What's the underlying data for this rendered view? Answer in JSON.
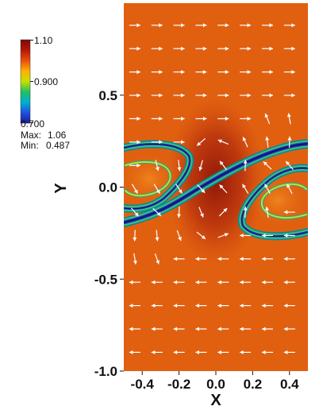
{
  "chart_data": {
    "type": "heatmap",
    "title": "",
    "xlabel": "X",
    "ylabel": "Y",
    "xlim": [
      -0.5,
      0.5
    ],
    "ylim": [
      -1.0,
      1.0
    ],
    "x_ticks": [
      {
        "value": -0.4,
        "label": "-0.4"
      },
      {
        "value": -0.2,
        "label": "-0.2"
      },
      {
        "value": 0.0,
        "label": "0.0"
      },
      {
        "value": 0.2,
        "label": "0.2"
      },
      {
        "value": 0.4,
        "label": "0.4"
      }
    ],
    "y_ticks": [
      {
        "value": 0.5,
        "label": "0.5"
      },
      {
        "value": 0.0,
        "label": "0.0"
      },
      {
        "value": -0.5,
        "label": "-0.5"
      },
      {
        "value": -1.0,
        "label": "-1.0"
      }
    ],
    "colorbar": {
      "max_label": "1.10",
      "mid_label": "0.900",
      "min_label": "0.700",
      "range": [
        0.7,
        1.1
      ],
      "colors": [
        "#1a1a9a",
        "#2050e0",
        "#00b0d0",
        "#20c060",
        "#c8e000",
        "#ffb000",
        "#e85010",
        "#b81808",
        "#7a0a06"
      ],
      "stats": {
        "max_label": "Max:",
        "max_value": "1.06",
        "min_label": "Min:",
        "min_value": "0.487"
      }
    },
    "field": {
      "background_color": "#e06010",
      "core_color": "#9c1c0a",
      "arrow_color": "#ffffff",
      "vector_field": "shear flow: rightward above the interface, leftward below, rotation around the center vortex"
    }
  }
}
